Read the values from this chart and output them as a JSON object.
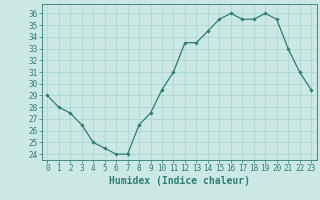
{
  "x": [
    0,
    1,
    2,
    3,
    4,
    5,
    6,
    7,
    8,
    9,
    10,
    11,
    12,
    13,
    14,
    15,
    16,
    17,
    18,
    19,
    20,
    21,
    22,
    23
  ],
  "y": [
    29.0,
    28.0,
    27.5,
    26.5,
    25.0,
    24.5,
    24.0,
    24.0,
    26.5,
    27.5,
    29.5,
    31.0,
    33.5,
    33.5,
    34.5,
    35.5,
    36.0,
    35.5,
    35.5,
    36.0,
    35.5,
    33.0,
    31.0,
    29.5
  ],
  "line_color": "#2e7d72",
  "marker": "D",
  "markersize": 1.8,
  "linewidth": 0.9,
  "bg_color": "#cce8e4",
  "grid_color": "#a8d4cf",
  "xlabel": "Humidex (Indice chaleur)",
  "ylim": [
    23.5,
    36.8
  ],
  "xlim": [
    -0.5,
    23.5
  ],
  "yticks": [
    24,
    25,
    26,
    27,
    28,
    29,
    30,
    31,
    32,
    33,
    34,
    35,
    36
  ],
  "xticks": [
    0,
    1,
    2,
    3,
    4,
    5,
    6,
    7,
    8,
    9,
    10,
    11,
    12,
    13,
    14,
    15,
    16,
    17,
    18,
    19,
    20,
    21,
    22,
    23
  ],
  "tick_label_fontsize": 5.5,
  "xlabel_fontsize": 7.0,
  "tick_color": "#2e7d72",
  "label_color": "#2e7d72",
  "spine_color": "#2e7d72"
}
